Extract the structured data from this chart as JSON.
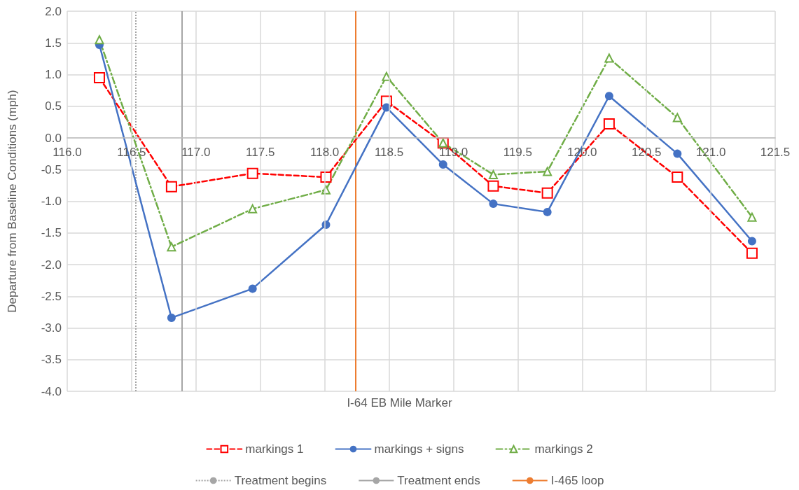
{
  "chart_data": {
    "type": "line",
    "xlabel": "I-64 EB Mile Marker",
    "ylabel": "Departure from Baseline Conditions (mph)",
    "x": [
      116.25,
      116.81,
      117.44,
      118.01,
      118.48,
      118.92,
      119.31,
      119.73,
      120.21,
      120.74,
      121.32
    ],
    "series": [
      {
        "name": "markings 1",
        "color": "#ff0000",
        "marker": "square",
        "line_style": "dashed",
        "values": [
          0.95,
          -0.77,
          -0.56,
          -0.62,
          0.58,
          -0.08,
          -0.76,
          -0.87,
          0.22,
          -0.62,
          -1.82
        ]
      },
      {
        "name": "markings + signs",
        "color": "#4472c4",
        "marker": "circle",
        "line_style": "solid",
        "values": [
          1.47,
          -2.84,
          -2.38,
          -1.37,
          0.48,
          -0.42,
          -1.04,
          -1.17,
          0.66,
          -0.25,
          -1.63
        ]
      },
      {
        "name": "markings 2",
        "color": "#70ad47",
        "marker": "triangle",
        "line_style": "dashdot",
        "values": [
          1.55,
          -1.72,
          -1.12,
          -0.82,
          0.97,
          -0.08,
          -0.58,
          -0.53,
          1.26,
          0.32,
          -1.25
        ]
      }
    ],
    "xlim": [
      116.0,
      121.5
    ],
    "xticks": [
      {
        "value": 116,
        "label": "116.0"
      },
      {
        "value": 116.5,
        "label": "116.5"
      },
      {
        "value": 117,
        "label": "117.0"
      },
      {
        "value": 117.5,
        "label": "117.5"
      },
      {
        "value": 118,
        "label": "118.0"
      },
      {
        "value": 118.5,
        "label": "118.5"
      },
      {
        "value": 119,
        "label": "119.0"
      },
      {
        "value": 119.5,
        "label": "119.5"
      },
      {
        "value": 120,
        "label": "120.0"
      },
      {
        "value": 120.5,
        "label": "120.5"
      },
      {
        "value": 121,
        "label": "121.0"
      },
      {
        "value": 121.5,
        "label": "121.5"
      }
    ],
    "ylim": [
      -4.0,
      2.0
    ],
    "yticks": [
      {
        "value": -4,
        "label": "-4.0"
      },
      {
        "value": -3.5,
        "label": "-3.5"
      },
      {
        "value": -3,
        "label": "-3.0"
      },
      {
        "value": -2.5,
        "label": "-2.5"
      },
      {
        "value": -2,
        "label": "-2.0"
      },
      {
        "value": -1.5,
        "label": "-1.5"
      },
      {
        "value": -1,
        "label": "-1.0"
      },
      {
        "value": -0.5,
        "label": "-0.5"
      },
      {
        "value": 0,
        "label": "0.0"
      },
      {
        "value": 0.5,
        "label": "0.5"
      },
      {
        "value": 1,
        "label": "1.0"
      },
      {
        "value": 1.5,
        "label": "1.5"
      },
      {
        "value": 2,
        "label": "2.0"
      }
    ],
    "ref_lines": [
      {
        "axis": "x",
        "value": 116.53,
        "label": "Treatment begins",
        "color": "#a6a6a6",
        "line_style": "dotted"
      },
      {
        "axis": "x",
        "value": 116.89,
        "label": "Treatment ends",
        "color": "#a6a6a6",
        "line_style": "solid"
      },
      {
        "axis": "x",
        "value": 118.24,
        "label": "I-465 loop",
        "color": "#ed7d31",
        "line_style": "solid"
      }
    ],
    "grid": true,
    "legend": "bottom"
  }
}
